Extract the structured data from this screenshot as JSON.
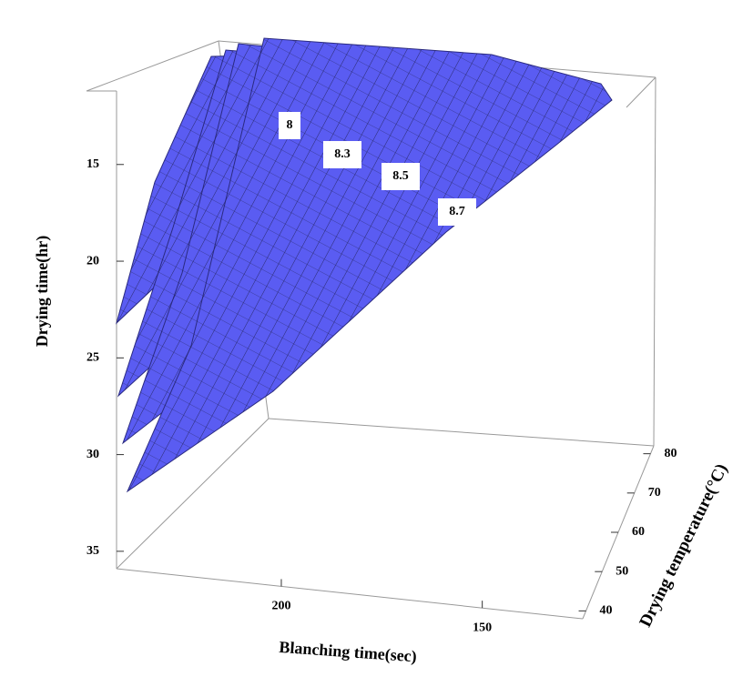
{
  "chart_data": {
    "type": "surface3d",
    "zlabel": "Drying time(hr)",
    "xlabel": "Blanching time(sec)",
    "ylabel": "Drying temperature(°C)",
    "zlim": [
      11.2,
      35.9
    ],
    "zticks": [
      15,
      20,
      25,
      30,
      35
    ],
    "xlim": [
      241,
      125
    ],
    "xticks": [
      200,
      150
    ],
    "ylim": [
      38,
      82
    ],
    "yticks": [
      40,
      50,
      60,
      70,
      80
    ],
    "levels": [
      8,
      8.3,
      8.5,
      8.7
    ],
    "color": "#5a5cf2"
  }
}
